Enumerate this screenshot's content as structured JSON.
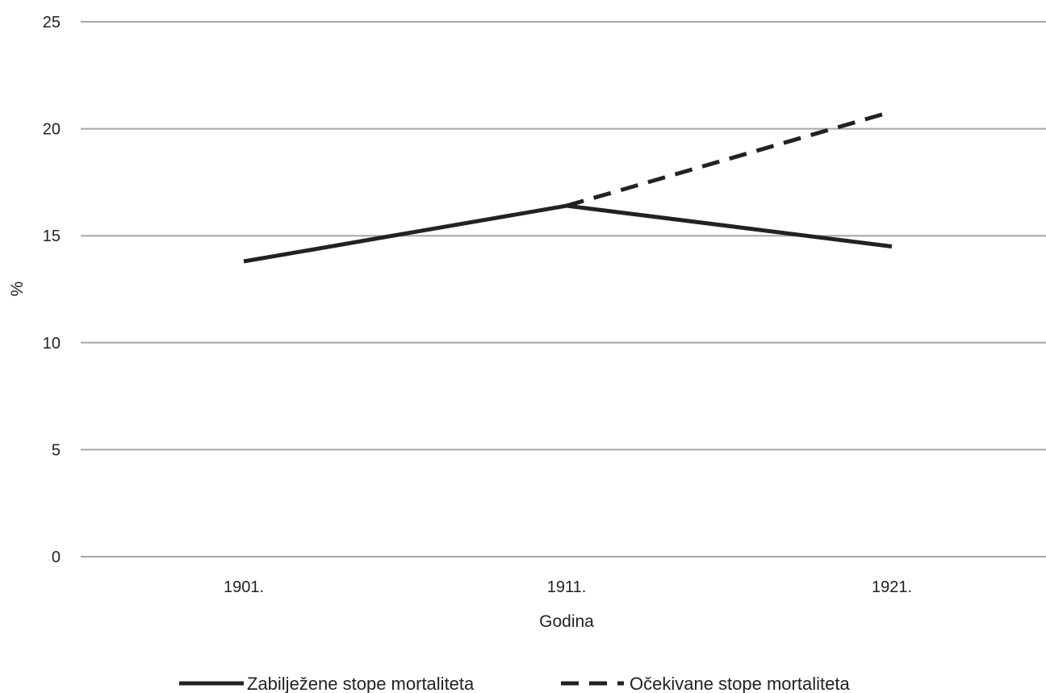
{
  "chart_data": {
    "type": "line",
    "title": "",
    "xlabel": "Godina",
    "ylabel": "%",
    "categories": [
      "1901.",
      "1911.",
      "1921."
    ],
    "ylim": [
      0,
      25
    ],
    "yticks": [
      "0",
      "5",
      "10",
      "15",
      "20",
      "25"
    ],
    "grid": true,
    "legend_position": "bottom",
    "series": [
      {
        "name": "Zabilježene stope mortaliteta",
        "style": "solid",
        "color": "#222222",
        "values": [
          13.8,
          16.4,
          14.5
        ]
      },
      {
        "name": "Očekivane stope mortaliteta",
        "style": "dashed",
        "color": "#222222",
        "values": [
          null,
          16.4,
          20.8
        ]
      }
    ],
    "colors": {
      "grid": "#a6a6a6",
      "line": "#222222"
    }
  }
}
